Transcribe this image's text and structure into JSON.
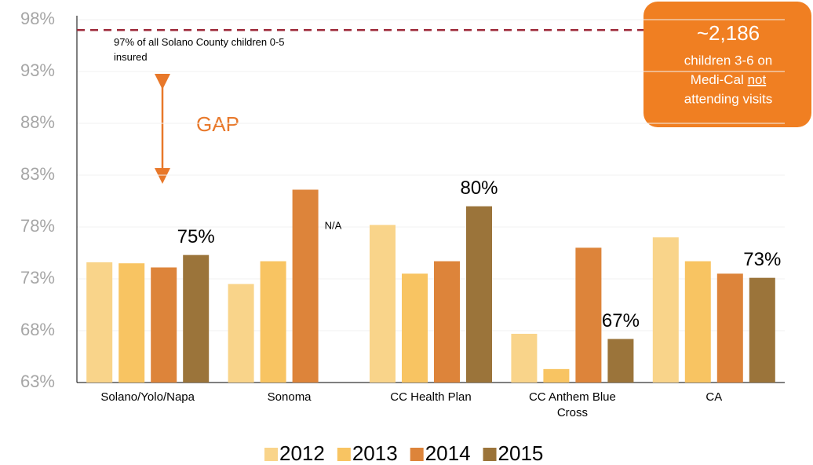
{
  "chart_data": {
    "type": "bar",
    "categories": [
      "Solano/Yolo/Napa",
      "Sonoma",
      "CC Health Plan",
      "CC Anthem Blue Cross",
      "CA"
    ],
    "series": [
      {
        "name": "2012",
        "color": "#f9d48a",
        "values": [
          74.6,
          72.5,
          78.2,
          67.7,
          77.0
        ]
      },
      {
        "name": "2013",
        "color": "#f8c462",
        "values": [
          74.5,
          74.7,
          73.5,
          64.3,
          74.7
        ]
      },
      {
        "name": "2014",
        "color": "#dd843a",
        "values": [
          74.1,
          81.6,
          74.7,
          76.0,
          73.5
        ]
      },
      {
        "name": "2015",
        "color": "#9b743a",
        "values": [
          75.3,
          null,
          80.0,
          67.2,
          73.1
        ],
        "value_labels": [
          "75%",
          "N/A",
          "80%",
          "67%",
          "73%"
        ]
      }
    ],
    "ylim": [
      63,
      98
    ],
    "yticks": [
      {
        "value": 63,
        "label": "63%"
      },
      {
        "value": 68,
        "label": "68%"
      },
      {
        "value": 73,
        "label": "73%"
      },
      {
        "value": 78,
        "label": "78%"
      },
      {
        "value": 83,
        "label": "83%"
      },
      {
        "value": 88,
        "label": "88%"
      },
      {
        "value": 93,
        "label": "93%"
      },
      {
        "value": 98,
        "label": "98%"
      }
    ],
    "grid": true,
    "reference_line": {
      "value": 97,
      "label": "97% of all Solano County children 0-5 insured",
      "color": "#9e2a3a"
    },
    "gap_label": "GAP",
    "callout": {
      "headline": "~2,186",
      "line1": "children 3-6 on",
      "line2a": "Medi-Cal",
      "line2b": "not",
      "line3": "attending visits"
    },
    "legend": "bottom"
  }
}
